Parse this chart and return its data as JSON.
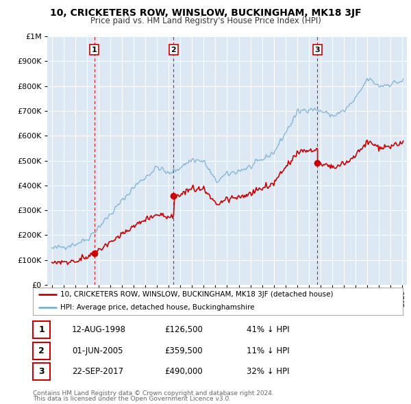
{
  "title": "10, CRICKETERS ROW, WINSLOW, BUCKINGHAM, MK18 3JF",
  "subtitle": "Price paid vs. HM Land Registry's House Price Index (HPI)",
  "property_label": "10, CRICKETERS ROW, WINSLOW, BUCKINGHAM, MK18 3JF (detached house)",
  "hpi_label": "HPI: Average price, detached house, Buckinghamshire",
  "property_color": "#cc0000",
  "hpi_color": "#7ab0d4",
  "vline_color": "#cc0000",
  "marker_color": "#cc0000",
  "transactions": [
    {
      "id": 1,
      "date": "12-AUG-1998",
      "year": 1998.62,
      "price": 126500,
      "pct": "41%",
      "dir": "↓"
    },
    {
      "id": 2,
      "date": "01-JUN-2005",
      "year": 2005.42,
      "price": 359500,
      "pct": "11%",
      "dir": "↓"
    },
    {
      "id": 3,
      "date": "22-SEP-2017",
      "year": 2017.72,
      "price": 490000,
      "pct": "32%",
      "dir": "↓"
    }
  ],
  "footer1": "Contains HM Land Registry data © Crown copyright and database right 2024.",
  "footer2": "This data is licensed under the Open Government Licence v3.0.",
  "ylim": [
    0,
    1000000
  ],
  "yticks": [
    0,
    100000,
    200000,
    300000,
    400000,
    500000,
    600000,
    700000,
    800000,
    900000,
    1000000
  ],
  "background_color": "#ffffff",
  "plot_bg_color": "#dce9f5",
  "grid_color": "#ffffff",
  "xmin": 1994.6,
  "xmax": 2025.4
}
